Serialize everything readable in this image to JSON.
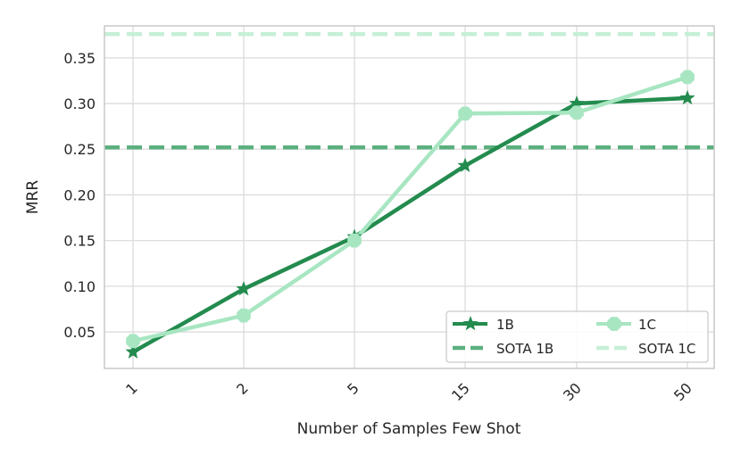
{
  "chart_data": {
    "type": "line",
    "xlabel": "Number of Samples Few Shot",
    "ylabel": "MRR",
    "categories": [
      "1",
      "2",
      "5",
      "15",
      "30",
      "50"
    ],
    "yticks": [
      "0.05",
      "0.10",
      "0.15",
      "0.20",
      "0.25",
      "0.30",
      "0.35"
    ],
    "ylim": [
      0.01,
      0.385
    ],
    "grid": true,
    "legend_position": "bottom-right",
    "series": [
      {
        "name": "1B",
        "values": [
          0.028,
          0.097,
          0.154,
          0.232,
          0.3,
          0.306
        ],
        "color": "#238b4e",
        "marker": "star",
        "style": "solid"
      },
      {
        "name": "1C",
        "values": [
          0.04,
          0.068,
          0.15,
          0.289,
          0.29,
          0.329
        ],
        "color": "#a8e6c2",
        "marker": "octagon",
        "style": "solid"
      }
    ],
    "reference_lines": [
      {
        "name": "SOTA 1B",
        "value": 0.252,
        "color": "#5bb07e",
        "style": "dashed"
      },
      {
        "name": "SOTA 1C",
        "value": 0.376,
        "color": "#c6efd7",
        "style": "dashed"
      }
    ]
  }
}
